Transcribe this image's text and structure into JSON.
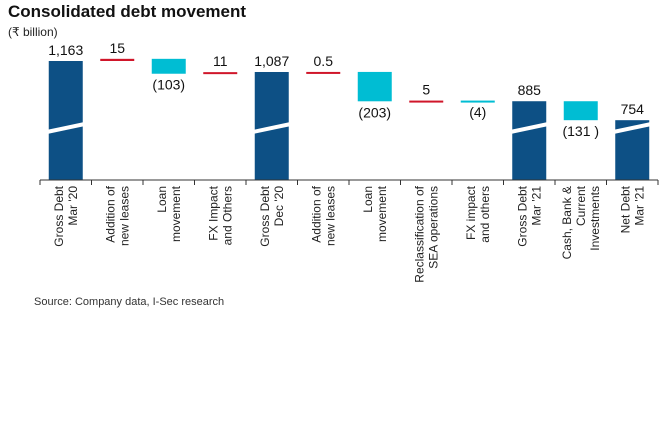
{
  "chart_data": {
    "type": "waterfall",
    "title": "Consolidated debt movement",
    "unit_label": "(₹ billion)",
    "source": "Source: Company data, I-Sec research",
    "colors": {
      "total": "#0d5085",
      "decrease": "#00bdd3",
      "increase": "#d0162a"
    },
    "steps": [
      {
        "category": [
          "Gross Debt",
          "Mar '20"
        ],
        "kind": "total",
        "value": 1163,
        "label": "1,163",
        "broken": true
      },
      {
        "category": [
          "Addition of",
          "new leases"
        ],
        "kind": "increase",
        "value": 15,
        "label": "15"
      },
      {
        "category": [
          "Loan",
          "movement"
        ],
        "kind": "decrease",
        "value": -103,
        "label": "(103)"
      },
      {
        "category": [
          "FX Impact",
          "and Others"
        ],
        "kind": "increase",
        "value": 11,
        "label": "11"
      },
      {
        "category": [
          "Gross Debt",
          "Dec '20"
        ],
        "kind": "total",
        "value": 1087,
        "label": "1,087",
        "broken": true
      },
      {
        "category": [
          "Addition of",
          "new leases"
        ],
        "kind": "increase",
        "value": 0.5,
        "label": "0.5"
      },
      {
        "category": [
          "Loan",
          "movement"
        ],
        "kind": "decrease",
        "value": -203,
        "label": "(203)"
      },
      {
        "category": [
          "Reclassification of",
          "SEA operations"
        ],
        "kind": "increase",
        "value": 5,
        "label": "5"
      },
      {
        "category": [
          "FX impact",
          "and others"
        ],
        "kind": "decrease",
        "value": -4,
        "label": "(4)"
      },
      {
        "category": [
          "Gross Debt",
          "Mar '21"
        ],
        "kind": "total",
        "value": 885,
        "label": "885",
        "broken": true
      },
      {
        "category": [
          "Cash, Bank &",
          "Current",
          "Investments"
        ],
        "kind": "decrease",
        "value": -131,
        "label": "(131 )"
      },
      {
        "category": [
          "Net Debt",
          "Mar '21"
        ],
        "kind": "total",
        "value": 754,
        "label": "754",
        "broken": true
      }
    ]
  }
}
